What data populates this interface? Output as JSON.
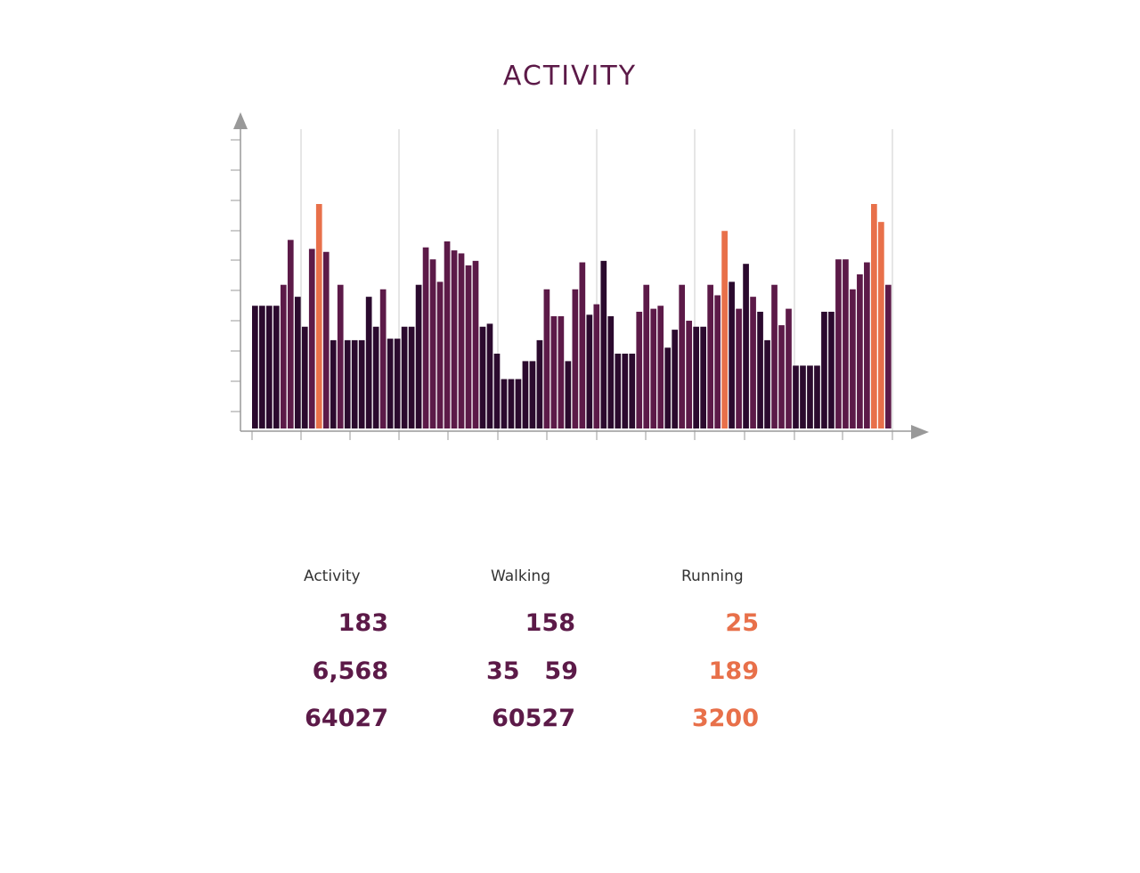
{
  "chart_data": {
    "type": "bar",
    "title": "ACTIVITY",
    "xlabel": "",
    "ylabel": "",
    "ylim": [
      0,
      10
    ],
    "grid": "vertical",
    "legend": "none",
    "colors": {
      "dark": "#2b0a2e",
      "purple": "#5c1a48",
      "highlight": "#e8704a",
      "grid": "#cccccc",
      "axis": "#999999"
    },
    "values": [
      4.1,
      4.1,
      4.1,
      4.1,
      4.8,
      6.3,
      4.4,
      3.4,
      6.0,
      7.5,
      5.9,
      2.95,
      4.8,
      2.95,
      2.95,
      2.95,
      4.4,
      3.4,
      4.65,
      3.0,
      3.0,
      3.4,
      3.4,
      4.8,
      6.05,
      5.65,
      4.9,
      6.25,
      5.95,
      5.85,
      5.45,
      5.6,
      3.4,
      3.5,
      2.5,
      1.65,
      1.65,
      1.65,
      2.25,
      2.25,
      2.95,
      4.65,
      3.75,
      3.75,
      2.25,
      4.65,
      5.55,
      3.8,
      4.15,
      5.6,
      3.75,
      2.5,
      2.5,
      2.5,
      3.9,
      4.8,
      4.0,
      4.1,
      2.7,
      3.3,
      4.8,
      3.6,
      3.4,
      3.4,
      4.8,
      4.45,
      6.6,
      4.9,
      4.0,
      5.5,
      4.4,
      3.9,
      2.95,
      4.8,
      3.45,
      4.0,
      2.1,
      2.1,
      2.1,
      2.1,
      3.9,
      3.9,
      5.65,
      5.65,
      4.65,
      5.15,
      5.55,
      7.5,
      6.9,
      4.8
    ],
    "highlight_indices": [
      9,
      66,
      87,
      88
    ],
    "dark_indices": [
      0,
      1,
      2,
      3,
      6,
      7,
      11,
      13,
      14,
      15,
      16,
      17,
      19,
      20,
      21,
      22,
      23,
      32,
      33,
      34,
      35,
      36,
      37,
      38,
      39,
      40,
      44,
      47,
      49,
      50,
      51,
      52,
      53,
      58,
      59,
      62,
      63,
      67,
      69,
      71,
      72,
      76,
      77,
      78,
      79,
      80,
      81
    ]
  },
  "stats": {
    "headers": {
      "activity": "Activity",
      "walking": "Walking",
      "running": "Running"
    },
    "rows": [
      {
        "activity": "183",
        "walking": "158",
        "walking_b": "",
        "running": "25"
      },
      {
        "activity": "6,568",
        "walking": "35",
        "walking_b": "59",
        "running": "189"
      },
      {
        "activity": "64027",
        "walking": "60527",
        "walking_b": "",
        "running": "3200"
      }
    ]
  }
}
